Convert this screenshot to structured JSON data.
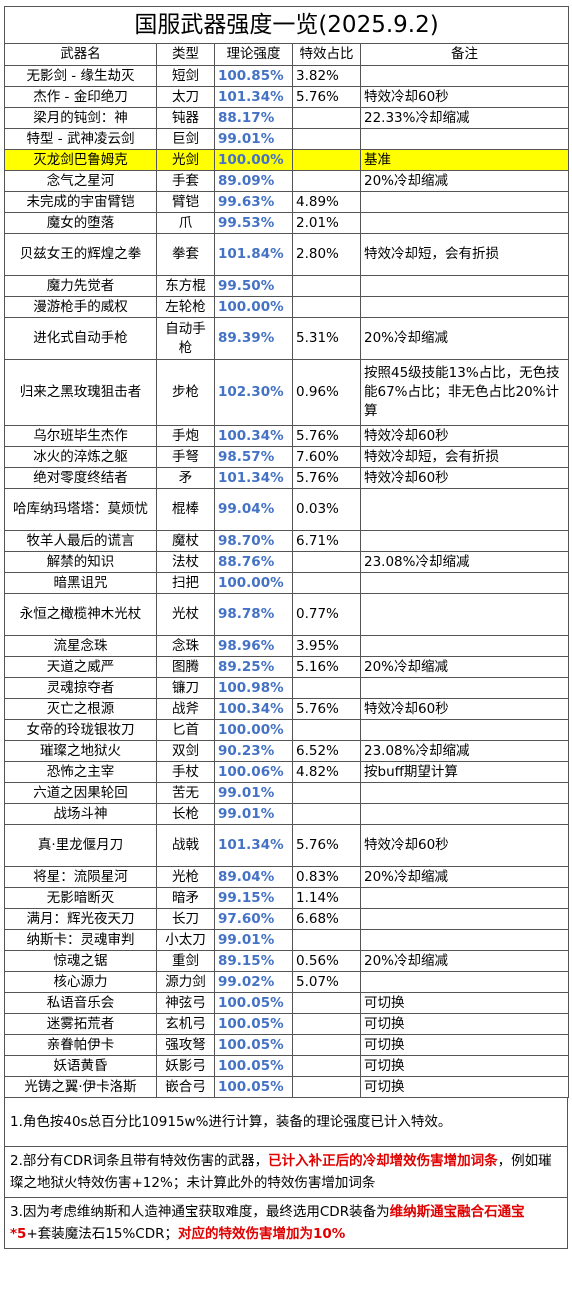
{
  "title": "国服武器强度一览(2025.9.2)",
  "headers": [
    "武器名",
    "类型",
    "理论强度",
    "特效占比",
    "备注"
  ],
  "rows": [
    {
      "name": "无影剑 - 缘生劫灭",
      "type": "短剑",
      "value": "100.85%",
      "pct": "3.82%",
      "note": "",
      "h": 21
    },
    {
      "name": "杰作 - 金印绝刀",
      "type": "太刀",
      "value": "101.34%",
      "pct": "5.76%",
      "note": "特效冷却60秒",
      "h": 21
    },
    {
      "name": "梁月的钝剑：神",
      "type": "钝器",
      "value": "88.17%",
      "pct": "",
      "note": "22.33%冷却缩减",
      "h": 21
    },
    {
      "name": "特型 - 武神凌云剑",
      "type": "巨剑",
      "value": "99.01%",
      "pct": "",
      "note": "",
      "h": 21
    },
    {
      "name": "灭龙剑巴鲁姆克",
      "type": "光剑",
      "value": "100.00%",
      "pct": "",
      "note": "基准",
      "h": 21,
      "hl": true
    },
    {
      "name": "念气之星河",
      "type": "手套",
      "value": "89.09%",
      "pct": "",
      "note": "20%冷却缩减",
      "h": 21
    },
    {
      "name": "未完成的宇宙臂铠",
      "type": "臂铠",
      "value": "99.63%",
      "pct": "4.89%",
      "note": "",
      "h": 21
    },
    {
      "name": "魔女的堕落",
      "type": "爪",
      "value": "99.53%",
      "pct": "2.01%",
      "note": "",
      "h": 21
    },
    {
      "name": "贝兹女王的辉煌之拳",
      "type": "拳套",
      "value": "101.84%",
      "pct": "2.80%",
      "note": "特效冷却短，会有折损",
      "h": 42
    },
    {
      "name": "魔力先觉者",
      "type": "东方棍",
      "value": "99.50%",
      "pct": "",
      "note": "",
      "h": 21
    },
    {
      "name": "漫游枪手的威权",
      "type": "左轮枪",
      "value": "100.00%",
      "pct": "",
      "note": "",
      "h": 21
    },
    {
      "name": "进化式自动手枪",
      "type": "自动手枪",
      "value": "89.39%",
      "pct": "5.31%",
      "note": "20%冷却缩减",
      "h": 42
    },
    {
      "name": "归来之黑玫瑰狙击者",
      "type": "步枪",
      "value": "102.30%",
      "pct": "0.96%",
      "note": "按照45级技能13%占比，无色技能67%占比；非无色占比20%计算",
      "h": 66
    },
    {
      "name": "乌尔班毕生杰作",
      "type": "手炮",
      "value": "100.34%",
      "pct": "5.76%",
      "note": "特效冷却60秒",
      "h": 21
    },
    {
      "name": "冰火的淬炼之躯",
      "type": "手弩",
      "value": "98.57%",
      "pct": "7.60%",
      "note": "特效冷却短，会有折损",
      "h": 21
    },
    {
      "name": "绝对零度终结者",
      "type": "矛",
      "value": "101.34%",
      "pct": "5.76%",
      "note": "特效冷却60秒",
      "h": 21
    },
    {
      "name": "哈库纳玛塔塔：莫烦忧",
      "type": "棍棒",
      "value": "99.04%",
      "pct": "0.03%",
      "note": "",
      "h": 42
    },
    {
      "name": "牧羊人最后的谎言",
      "type": "魔杖",
      "value": "98.70%",
      "pct": "6.71%",
      "note": "",
      "h": 21
    },
    {
      "name": "解禁的知识",
      "type": "法杖",
      "value": "88.76%",
      "pct": "",
      "note": "23.08%冷却缩减",
      "h": 21
    },
    {
      "name": "暗黑诅咒",
      "type": "扫把",
      "value": "100.00%",
      "pct": "",
      "note": "",
      "h": 21
    },
    {
      "name": "永恒之橄榄神木光杖",
      "type": "光杖",
      "value": "98.78%",
      "pct": "0.77%",
      "note": "",
      "h": 42
    },
    {
      "name": "流星念珠",
      "type": "念珠",
      "value": "98.96%",
      "pct": "3.95%",
      "note": "",
      "h": 21
    },
    {
      "name": "天道之威严",
      "type": "图腾",
      "value": "89.25%",
      "pct": "5.16%",
      "note": "20%冷却缩减",
      "h": 21
    },
    {
      "name": "灵魂掠夺者",
      "type": "镰刀",
      "value": "100.98%",
      "pct": "",
      "note": "",
      "h": 21
    },
    {
      "name": "灭亡之根源",
      "type": "战斧",
      "value": "100.34%",
      "pct": "5.76%",
      "note": "特效冷却60秒",
      "h": 21
    },
    {
      "name": "女帝的玲珑银妆刀",
      "type": "匕首",
      "value": "100.00%",
      "pct": "",
      "note": "",
      "h": 21
    },
    {
      "name": "璀璨之地狱火",
      "type": "双剑",
      "value": "90.23%",
      "pct": "6.52%",
      "note": "23.08%冷却缩减",
      "h": 21
    },
    {
      "name": "恐怖之主宰",
      "type": "手杖",
      "value": "100.06%",
      "pct": "4.82%",
      "note": "按buff期望计算",
      "h": 21
    },
    {
      "name": "六道之因果轮回",
      "type": "苦无",
      "value": "99.01%",
      "pct": "",
      "note": "",
      "h": 21
    },
    {
      "name": "战场斗神",
      "type": "长枪",
      "value": "99.01%",
      "pct": "",
      "note": "",
      "h": 21
    },
    {
      "name": "真·里龙偃月刀",
      "type": "战戟",
      "value": "101.34%",
      "pct": "5.76%",
      "note": "特效冷却60秒",
      "h": 42
    },
    {
      "name": "将星：流陨星河",
      "type": "光枪",
      "value": "89.04%",
      "pct": "0.83%",
      "note": "20%冷却缩减",
      "h": 21
    },
    {
      "name": "无影暗断灭",
      "type": "暗矛",
      "value": "99.15%",
      "pct": "1.14%",
      "note": "",
      "h": 21
    },
    {
      "name": "满月：辉光夜天刀",
      "type": "长刀",
      "value": "97.60%",
      "pct": "6.68%",
      "note": "",
      "h": 21
    },
    {
      "name": "纳斯卡：灵魂审判",
      "type": "小太刀",
      "value": "99.01%",
      "pct": "",
      "note": "",
      "h": 21
    },
    {
      "name": "惊魂之锯",
      "type": "重剑",
      "value": "89.15%",
      "pct": "0.56%",
      "note": "20%冷却缩减",
      "h": 21
    },
    {
      "name": "核心源力",
      "type": "源力剑",
      "value": "99.02%",
      "pct": "5.07%",
      "note": "",
      "h": 21
    },
    {
      "name": "私语音乐会",
      "type": "神弦弓",
      "value": "100.05%",
      "pct": "",
      "note": "可切换",
      "h": 21
    },
    {
      "name": "迷雾拓荒者",
      "type": "玄机弓",
      "value": "100.05%",
      "pct": "",
      "note": "可切换",
      "h": 21
    },
    {
      "name": "亲眷帕伊卡",
      "type": "强攻弩",
      "value": "100.05%",
      "pct": "",
      "note": "可切换",
      "h": 21
    },
    {
      "name": "妖语黄昏",
      "type": "妖影弓",
      "value": "100.05%",
      "pct": "",
      "note": "可切换",
      "h": 21
    },
    {
      "name": "光铸之翼·伊卡洛斯",
      "type": "嵌合弓",
      "value": "100.05%",
      "pct": "",
      "note": "可切换",
      "h": 21
    }
  ],
  "footnotes": {
    "n1": "1.角色按40s总百分比10915w%进行计算，装备的理论强度已计入特效。",
    "n2_a": "2.部分有CDR词条且带有特效伤害的武器，",
    "n2_b": "已计入补正后的冷却增效伤害增加词条",
    "n2_c": "，例如璀璨之地狱火特效伤害+12%；未计算此外的特效伤害增加词条",
    "n3_a": "3.因为考虑维纳斯和人造神通宝获取难度，最终选用CDR装备为",
    "n3_b": "维纳斯通宝融合石通宝*5",
    "n3_c": "+套装魔法石15%CDR；",
    "n3_d": "对应的特效伤害增加为10%"
  },
  "colors": {
    "value_blue": "#4472c4",
    "highlight": "#ffff00",
    "red": "#e00000"
  }
}
